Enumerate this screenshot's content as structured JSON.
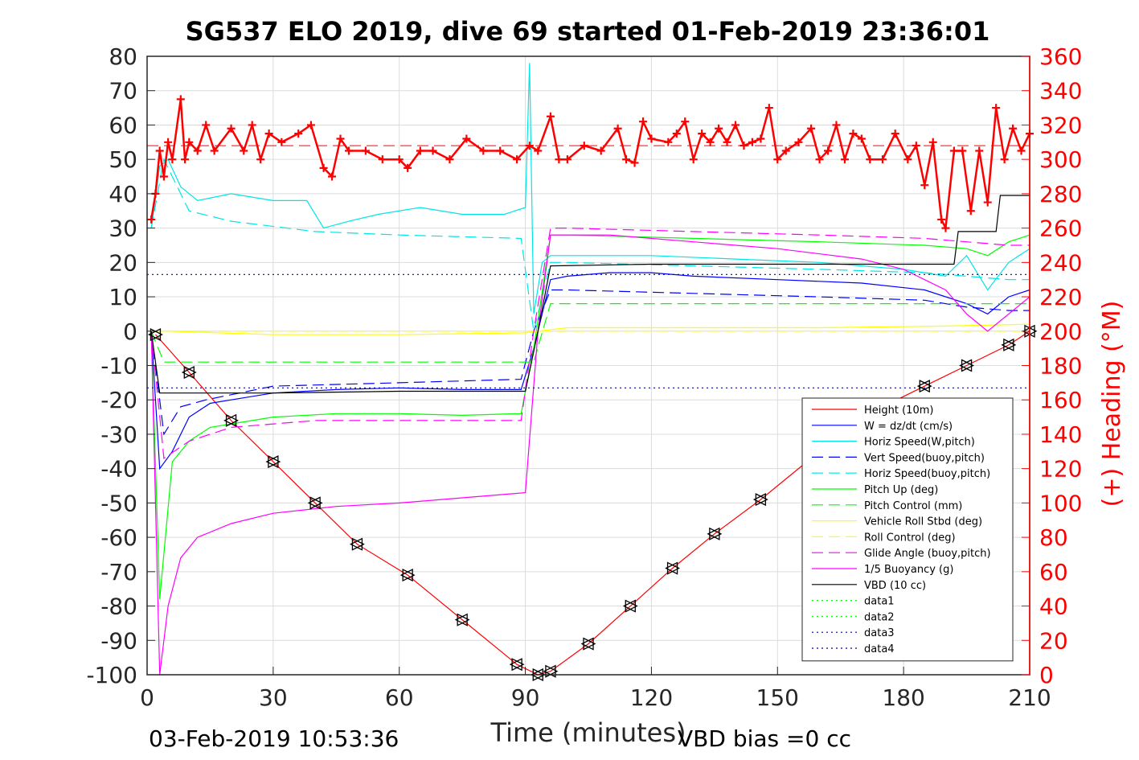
{
  "chart_data": {
    "type": "line",
    "title": "SG537 ELO 2019, dive 69 started 01-Feb-2019 23:36:01",
    "xlabel": "Time (minutes)",
    "ylabel": "",
    "y2label": "(+) Heading (°M)",
    "xlim": [
      0,
      210
    ],
    "ylim": [
      -100,
      80
    ],
    "y2lim": [
      0,
      360
    ],
    "x_ticks": [
      "0",
      "30",
      "60",
      "90",
      "120",
      "150",
      "180",
      "210"
    ],
    "y_ticks": [
      "80",
      "70",
      "60",
      "50",
      "40",
      "30",
      "20",
      "10",
      "0",
      "-10",
      "-20",
      "-30",
      "-40",
      "-50",
      "-60",
      "-70",
      "-80",
      "-90",
      "-100"
    ],
    "y2_ticks": [
      "360",
      "340",
      "320",
      "300",
      "280",
      "260",
      "240",
      "220",
      "200",
      "180",
      "160",
      "140",
      "120",
      "100",
      "80",
      "60",
      "40",
      "20",
      "0"
    ],
    "grid": true,
    "legend_position": "bottom-right",
    "series": [
      {
        "name": "Height (10m)",
        "color": "#ff0000",
        "style": "solid",
        "x": [
          2,
          10,
          20,
          30,
          40,
          50,
          62,
          75,
          88,
          93,
          96,
          105,
          115,
          125,
          135,
          146,
          160,
          175,
          185,
          195,
          205,
          210
        ],
        "y": [
          -1,
          -12,
          -26,
          -38,
          -50,
          -62,
          -71,
          -84,
          -97,
          -100,
          -99,
          -91,
          -80,
          -69,
          -59,
          -49,
          -35,
          -22,
          -16,
          -10,
          -4,
          0
        ]
      },
      {
        "name": "W = dz/dt (cm/s)",
        "color": "#0000ff",
        "style": "solid",
        "x": [
          1,
          3,
          6,
          10,
          15,
          20,
          30,
          45,
          60,
          75,
          89,
          92,
          96,
          100,
          110,
          120,
          130,
          150,
          170,
          185,
          195,
          200,
          205,
          210
        ],
        "y": [
          0,
          -40,
          -35,
          -25,
          -21,
          -20,
          -18,
          -17,
          -16.5,
          -17,
          -17,
          -5,
          15,
          16,
          17,
          17,
          16,
          15,
          14,
          12,
          8,
          5,
          10,
          12
        ]
      },
      {
        "name": "Horiz Speed(W,pitch)",
        "color": "#00e5e5",
        "style": "solid",
        "x": [
          1,
          3,
          5,
          8,
          12,
          20,
          30,
          38,
          42,
          48,
          55,
          65,
          75,
          85,
          90,
          91,
          92,
          94,
          96,
          100,
          120,
          140,
          160,
          180,
          190,
          195,
          200,
          205,
          210
        ],
        "y": [
          30,
          48,
          50,
          42,
          38,
          40,
          38,
          38,
          30,
          32,
          34,
          36,
          34,
          34,
          36,
          78,
          5,
          20,
          22,
          22,
          22,
          21,
          20,
          18,
          16,
          22,
          12,
          20,
          24
        ]
      },
      {
        "name": "Vert Speed(buoy,pitch)",
        "color": "#0000ff",
        "style": "dashed",
        "x": [
          1,
          4,
          8,
          14,
          30,
          60,
          89,
          92,
          96,
          100,
          130,
          160,
          185,
          195,
          205,
          210
        ],
        "y": [
          0,
          -30,
          -22,
          -20,
          -16,
          -15,
          -14,
          0,
          12,
          12,
          11,
          10,
          9,
          7,
          6,
          6
        ]
      },
      {
        "name": "Horiz Speed(buoy,pitch)",
        "color": "#00e5e5",
        "style": "dashed",
        "x": [
          1,
          4,
          10,
          20,
          40,
          60,
          89,
          92,
          96,
          100,
          130,
          160,
          185,
          195,
          205,
          210
        ],
        "y": [
          30,
          50,
          35,
          32,
          29,
          28,
          27,
          0,
          20,
          20,
          19,
          18,
          17,
          16,
          15,
          15
        ]
      },
      {
        "name": "Pitch Up (deg)",
        "color": "#00ff00",
        "style": "solid",
        "x": [
          1,
          3,
          6,
          10,
          15,
          20,
          30,
          45,
          60,
          75,
          89,
          92,
          96,
          100,
          130,
          160,
          185,
          195,
          200,
          205,
          210
        ],
        "y": [
          0,
          -78,
          -38,
          -32,
          -28,
          -27,
          -25,
          -24,
          -24,
          -24.5,
          -24,
          -5,
          28,
          28,
          27,
          26,
          25,
          24,
          22,
          26,
          28
        ]
      },
      {
        "name": "Pitch Control (mm)",
        "color": "#00ff00",
        "style": "dashed",
        "x": [
          1,
          4,
          30,
          89,
          92,
          96,
          210
        ],
        "y": [
          0,
          -9,
          -9,
          -9,
          -9,
          8,
          8
        ]
      },
      {
        "name": "Vehicle Roll Stbd (deg)",
        "color": "#ffff00",
        "style": "solid",
        "x": [
          1,
          5,
          30,
          60,
          90,
          93,
          100,
          130,
          160,
          190,
          210
        ],
        "y": [
          0,
          0,
          -1,
          -1,
          -0.5,
          0,
          1,
          1,
          1,
          1.5,
          2
        ]
      },
      {
        "name": "Roll Control (deg)",
        "color": "#ffff00",
        "style": "dashed",
        "x": [
          1,
          30,
          90,
          93,
          210
        ],
        "y": [
          0,
          0,
          0,
          0,
          0
        ]
      },
      {
        "name": "Glide Angle (buoy,pitch)",
        "color": "#ff00ff",
        "style": "dashed",
        "x": [
          1,
          4,
          10,
          20,
          40,
          60,
          89,
          92,
          96,
          100,
          130,
          160,
          185,
          195,
          205,
          210
        ],
        "y": [
          0,
          -37,
          -32,
          -28,
          -26,
          -26,
          -26,
          0,
          30,
          30,
          29,
          28,
          27,
          26,
          25,
          25
        ]
      },
      {
        "name": "1/5 Buoyancy (g)",
        "color": "#ff00ff",
        "style": "solid",
        "x": [
          1,
          3,
          5,
          8,
          12,
          20,
          30,
          45,
          60,
          75,
          90,
          93,
          96,
          110,
          130,
          150,
          170,
          180,
          190,
          195,
          200,
          210
        ],
        "y": [
          0,
          -100,
          -80,
          -66,
          -60,
          -56,
          -53,
          -51,
          -50,
          -48.5,
          -47,
          0,
          28,
          28,
          26,
          24,
          21,
          18,
          12,
          5,
          0,
          10
        ]
      },
      {
        "name": "VBD (10 cc)",
        "color": "#000000",
        "style": "solid",
        "x": [
          1,
          3,
          12,
          30,
          60,
          90,
          93,
          96,
          120,
          150,
          180,
          192,
          193,
          202,
          203,
          210
        ],
        "y": [
          0,
          -18,
          -18,
          -18,
          -17.5,
          -17.5,
          0,
          19,
          19.5,
          19.5,
          19.5,
          19.5,
          29,
          29,
          39.5,
          39.5
        ]
      },
      {
        "name": "data1",
        "color": "#00ff00",
        "style": "dotted",
        "x": [],
        "y": []
      },
      {
        "name": "data2",
        "color": "#00ff00",
        "style": "dotted",
        "x": [],
        "y": []
      },
      {
        "name": "data3",
        "color": "#0000a0",
        "style": "dotted",
        "x": [
          0,
          210
        ],
        "y": [
          16.5,
          16.5
        ]
      },
      {
        "name": "data4",
        "color": "#0000a0",
        "style": "dotted",
        "x": [
          0,
          210
        ],
        "y": [
          -16.5,
          -16.5
        ]
      }
    ],
    "heading": {
      "axis": "right",
      "color": "#ff0000",
      "marker": "+",
      "mean": 308,
      "x": [
        1,
        2,
        3,
        4,
        5,
        6,
        8,
        9,
        10,
        12,
        14,
        16,
        20,
        23,
        25,
        27,
        29,
        32,
        36,
        39,
        42,
        44,
        46,
        48,
        52,
        56,
        60,
        62,
        65,
        68,
        72,
        76,
        80,
        84,
        88,
        91,
        93,
        96,
        98,
        100,
        104,
        108,
        112,
        114,
        116,
        118,
        120,
        124,
        126,
        128,
        130,
        132,
        134,
        136,
        138,
        140,
        142,
        144,
        146,
        148,
        150,
        152,
        155,
        158,
        160,
        162,
        164,
        166,
        168,
        170,
        172,
        175,
        178,
        181,
        183,
        185,
        187,
        189,
        190,
        192,
        194,
        196,
        198,
        200,
        202,
        204,
        206,
        208,
        210
      ],
      "y": [
        265,
        280,
        305,
        290,
        310,
        300,
        335,
        300,
        310,
        305,
        320,
        305,
        318,
        305,
        320,
        300,
        315,
        310,
        315,
        320,
        295,
        290,
        312,
        305,
        305,
        300,
        300,
        295,
        305,
        305,
        300,
        312,
        305,
        305,
        300,
        308,
        305,
        325,
        300,
        300,
        308,
        305,
        318,
        300,
        298,
        322,
        312,
        310,
        315,
        322,
        300,
        315,
        310,
        318,
        310,
        320,
        308,
        310,
        312,
        330,
        300,
        305,
        310,
        318,
        300,
        305,
        320,
        300,
        315,
        312,
        300,
        300,
        315,
        300,
        308,
        285,
        310,
        265,
        260,
        305,
        305,
        270,
        305,
        275,
        330,
        300,
        318,
        305,
        315
      ]
    },
    "annotations": [
      "03-Feb-2019 10:53:36",
      "VBD bias =0 cc"
    ]
  },
  "colors": {
    "axes_text": "#262626",
    "grid": "#dcdcdc",
    "right_axis": "#ff0000"
  }
}
